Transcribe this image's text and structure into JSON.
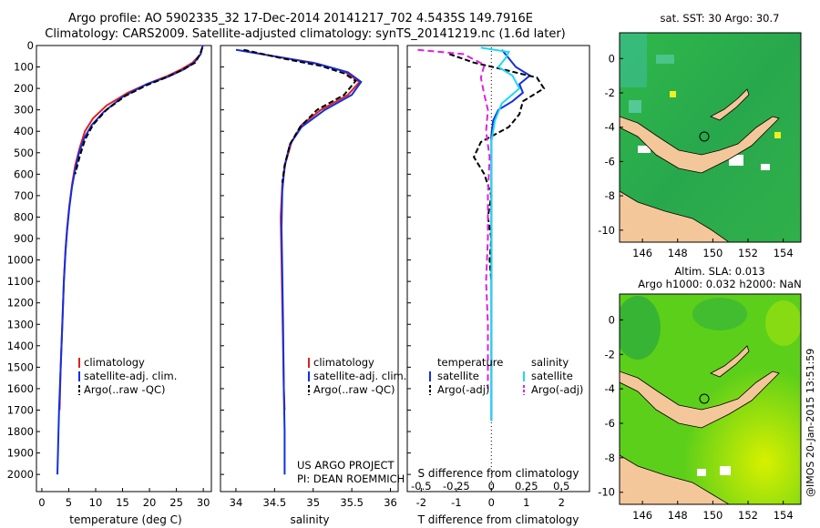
{
  "header": {
    "line1": "Argo profile: AO 5902335_32 17-Dec-2014 20141217_702 4.5435S 149.7916E",
    "line2": "Climatology: CARS2009. Satellite-adjusted climatology: synTS_20141219.nc (1.6d later)"
  },
  "credit": {
    "line1": "US ARGO PROJECT",
    "line2": "PI: DEAN ROEMMICH"
  },
  "timestamp": "@IMOS 20-Jan-2015 13:51:59",
  "colors": {
    "climatology": "#e02020",
    "satellite": "#1030e0",
    "argo": "#000000",
    "sal_sat": "#20d8f0",
    "sal_argo": "#e020e0",
    "land": "#f4c79a"
  },
  "chart_data": [
    {
      "id": "temperature",
      "type": "line",
      "xlabel": "temperature (deg C)",
      "ylabel": "",
      "xlim": [
        -1,
        31.5
      ],
      "ylim": [
        0,
        2080
      ],
      "x_ticks": [
        0,
        5,
        10,
        15,
        20,
        25,
        30
      ],
      "y_ticks": [
        0,
        100,
        200,
        300,
        400,
        500,
        600,
        700,
        800,
        900,
        1000,
        1100,
        1200,
        1300,
        1400,
        1500,
        1600,
        1700,
        1800,
        1900,
        2000
      ],
      "legend": [
        "climatology",
        "satellite-adj. clim.",
        "Argo(..raw -QC)"
      ],
      "series": [
        {
          "name": "climatology",
          "color": "#e02020",
          "dash": "",
          "points": [
            [
              29.9,
              0
            ],
            [
              29.5,
              40
            ],
            [
              28,
              80
            ],
            [
              26,
              110
            ],
            [
              23.5,
              140
            ],
            [
              20,
              175
            ],
            [
              16,
              220
            ],
            [
              12,
              280
            ],
            [
              9.5,
              340
            ],
            [
              8,
              400
            ],
            [
              7,
              480
            ],
            [
              6.2,
              560
            ],
            [
              5.6,
              650
            ],
            [
              5.1,
              750
            ],
            [
              4.7,
              850
            ],
            [
              4.4,
              950
            ],
            [
              4.1,
              1100
            ],
            [
              3.8,
              1300
            ],
            [
              3.5,
              1500
            ],
            [
              3.3,
              1700
            ]
          ]
        },
        {
          "name": "satellite-adj. clim.",
          "color": "#1030e0",
          "dash": "",
          "points": [
            [
              29.9,
              0
            ],
            [
              29.5,
              40
            ],
            [
              28.3,
              80
            ],
            [
              26.5,
              110
            ],
            [
              23.5,
              145
            ],
            [
              19.5,
              180
            ],
            [
              15,
              240
            ],
            [
              11.5,
              310
            ],
            [
              9.3,
              370
            ],
            [
              7.9,
              430
            ],
            [
              6.9,
              500
            ],
            [
              6.2,
              580
            ],
            [
              5.6,
              660
            ],
            [
              5.1,
              760
            ],
            [
              4.7,
              860
            ],
            [
              4.4,
              960
            ],
            [
              4.1,
              1100
            ],
            [
              3.8,
              1300
            ],
            [
              3.5,
              1500
            ],
            [
              3.2,
              1700
            ],
            [
              3.0,
              1900
            ],
            [
              2.9,
              2000
            ]
          ]
        },
        {
          "name": "Argo(..raw -QC)",
          "color": "#000000",
          "dash": "6,3",
          "points": [
            [
              29.8,
              10
            ],
            [
              29.4,
              40
            ],
            [
              28.5,
              80
            ],
            [
              26,
              115
            ],
            [
              23,
              150
            ],
            [
              19.5,
              185
            ],
            [
              15.5,
              235
            ],
            [
              12,
              300
            ],
            [
              9.5,
              370
            ],
            [
              8,
              440
            ],
            [
              7,
              520
            ],
            [
              6.2,
              600
            ]
          ]
        }
      ]
    },
    {
      "id": "salinity",
      "type": "line",
      "xlabel": "salinity",
      "ylabel": "",
      "xlim": [
        33.8,
        36.1
      ],
      "ylim": [
        0,
        2080
      ],
      "x_ticks": [
        34,
        34.5,
        35,
        35.5,
        36
      ],
      "legend": [
        "climatology",
        "satellite-adj. clim.",
        "Argo(..raw -QC)"
      ],
      "series": [
        {
          "name": "climatology",
          "color": "#e02020",
          "dash": "",
          "points": [
            [
              34.0,
              20
            ],
            [
              34.5,
              50
            ],
            [
              35.0,
              80
            ],
            [
              35.4,
              120
            ],
            [
              35.6,
              170
            ],
            [
              35.45,
              230
            ],
            [
              35.1,
              300
            ],
            [
              34.85,
              370
            ],
            [
              34.72,
              450
            ],
            [
              34.64,
              550
            ],
            [
              34.6,
              650
            ],
            [
              34.58,
              800
            ],
            [
              34.59,
              1000
            ],
            [
              34.6,
              1200
            ],
            [
              34.61,
              1400
            ],
            [
              34.62,
              1600
            ],
            [
              34.63,
              1700
            ]
          ]
        },
        {
          "name": "satellite-adj. clim.",
          "color": "#1030e0",
          "dash": "",
          "points": [
            [
              34.0,
              20
            ],
            [
              34.5,
              50
            ],
            [
              35.05,
              85
            ],
            [
              35.45,
              125
            ],
            [
              35.62,
              170
            ],
            [
              35.5,
              230
            ],
            [
              35.15,
              300
            ],
            [
              34.85,
              380
            ],
            [
              34.7,
              460
            ],
            [
              34.63,
              560
            ],
            [
              34.6,
              680
            ],
            [
              34.59,
              850
            ],
            [
              34.6,
              1050
            ],
            [
              34.61,
              1300
            ],
            [
              34.62,
              1600
            ],
            [
              34.63,
              1800
            ],
            [
              34.63,
              2000
            ]
          ]
        },
        {
          "name": "Argo(..raw -QC)",
          "color": "#000000",
          "dash": "6,3",
          "points": [
            [
              34.1,
              20
            ],
            [
              34.6,
              60
            ],
            [
              35.1,
              95
            ],
            [
              35.4,
              130
            ],
            [
              35.55,
              165
            ],
            [
              35.4,
              230
            ],
            [
              35.05,
              300
            ],
            [
              34.83,
              380
            ],
            [
              34.7,
              460
            ],
            [
              34.63,
              560
            ],
            [
              34.6,
              640
            ]
          ]
        }
      ]
    },
    {
      "id": "differences",
      "type": "line",
      "xlabel": "T difference from climatology",
      "xlabel_top": "S difference from climatology",
      "xlim": [
        -2.4,
        2.8
      ],
      "ylim": [
        0,
        2080
      ],
      "x_ticks": [
        -2,
        -1,
        0,
        1,
        2
      ],
      "top_ticks": [
        "-0.5",
        "-0.25",
        "0",
        "0.25",
        "0.5"
      ],
      "top_tick_positions": [
        -2,
        -1,
        0,
        1,
        2
      ],
      "legend_temperature": [
        "temperature",
        "satellite",
        "Argo(-adj)"
      ],
      "legend_salinity": [
        "salinity",
        "satellite",
        "Argo(-adj)"
      ],
      "series": [
        {
          "name": "temperature satellite",
          "color": "#1030e0",
          "dash": "",
          "points": [
            [
              0.3,
              20
            ],
            [
              0.5,
              60
            ],
            [
              0.7,
              100
            ],
            [
              1.1,
              140
            ],
            [
              0.8,
              180
            ],
            [
              0.9,
              220
            ],
            [
              0.6,
              260
            ],
            [
              0.2,
              300
            ],
            [
              0.05,
              350
            ],
            [
              0,
              420
            ],
            [
              0,
              600
            ],
            [
              0,
              800
            ],
            [
              0,
              1000
            ],
            [
              0,
              1200
            ],
            [
              0,
              1400
            ],
            [
              0,
              1600
            ],
            [
              0,
              1750
            ]
          ]
        },
        {
          "name": "temperature Argo(-adj)",
          "color": "#000000",
          "dash": "6,3",
          "points": [
            [
              -1.2,
              40
            ],
            [
              -0.5,
              80
            ],
            [
              0.3,
              110
            ],
            [
              1.3,
              150
            ],
            [
              1.5,
              200
            ],
            [
              0.9,
              260
            ],
            [
              0.8,
              320
            ],
            [
              0.5,
              380
            ],
            [
              -0.3,
              450
            ],
            [
              -0.5,
              520
            ],
            [
              -0.2,
              600
            ],
            [
              0,
              700
            ],
            [
              -0.1,
              800
            ],
            [
              0,
              900
            ],
            [
              -0.05,
              1000
            ],
            [
              0,
              1100
            ]
          ]
        },
        {
          "name": "salinity satellite",
          "color": "#20d8f0",
          "dash": "",
          "points": [
            [
              -0.3,
              10
            ],
            [
              0.5,
              30
            ],
            [
              0.4,
              60
            ],
            [
              0.2,
              100
            ],
            [
              0.6,
              140
            ],
            [
              0.8,
              200
            ],
            [
              0.3,
              270
            ],
            [
              0.1,
              350
            ],
            [
              0,
              450
            ],
            [
              0,
              700
            ],
            [
              0,
              1000
            ],
            [
              0,
              1300
            ],
            [
              0,
              1600
            ],
            [
              0,
              1750
            ]
          ]
        },
        {
          "name": "salinity Argo(-adj)",
          "color": "#e020e0",
          "dash": "7,4",
          "points": [
            [
              -2.1,
              20
            ],
            [
              -0.8,
              40
            ],
            [
              -0.2,
              90
            ],
            [
              -0.3,
              150
            ],
            [
              -0.2,
              230
            ],
            [
              -0.1,
              300
            ],
            [
              -0.15,
              400
            ],
            [
              -0.05,
              520
            ],
            [
              -0.1,
              700
            ],
            [
              -0.1,
              900
            ],
            [
              -0.15,
              1100
            ],
            [
              -0.1,
              1300
            ],
            [
              -0.1,
              1500
            ],
            [
              -0.1,
              1600
            ]
          ]
        }
      ]
    },
    {
      "id": "sst-map",
      "type": "heatmap",
      "title": "sat. SST: 30 Argo: 30.7",
      "xlim": [
        144.7,
        155
      ],
      "ylim": [
        -10.7,
        1.5
      ],
      "x_ticks": [
        146,
        148,
        150,
        152,
        154
      ],
      "y_ticks": [
        0,
        -2,
        -4,
        -6,
        -8,
        -10
      ],
      "argo_position": [
        149.79,
        -4.54
      ]
    },
    {
      "id": "sla-map",
      "type": "heatmap",
      "title": "Altim. SLA: 0.013",
      "subtitle": "Argo h1000: 0.032 h2000: NaN",
      "xlim": [
        144.7,
        155
      ],
      "ylim": [
        -10.7,
        1.5
      ],
      "x_ticks": [
        146,
        148,
        150,
        152,
        154
      ],
      "y_ticks": [
        0,
        -2,
        -4,
        -6,
        -8,
        -10
      ],
      "argo_position": [
        149.79,
        -4.54
      ]
    }
  ]
}
